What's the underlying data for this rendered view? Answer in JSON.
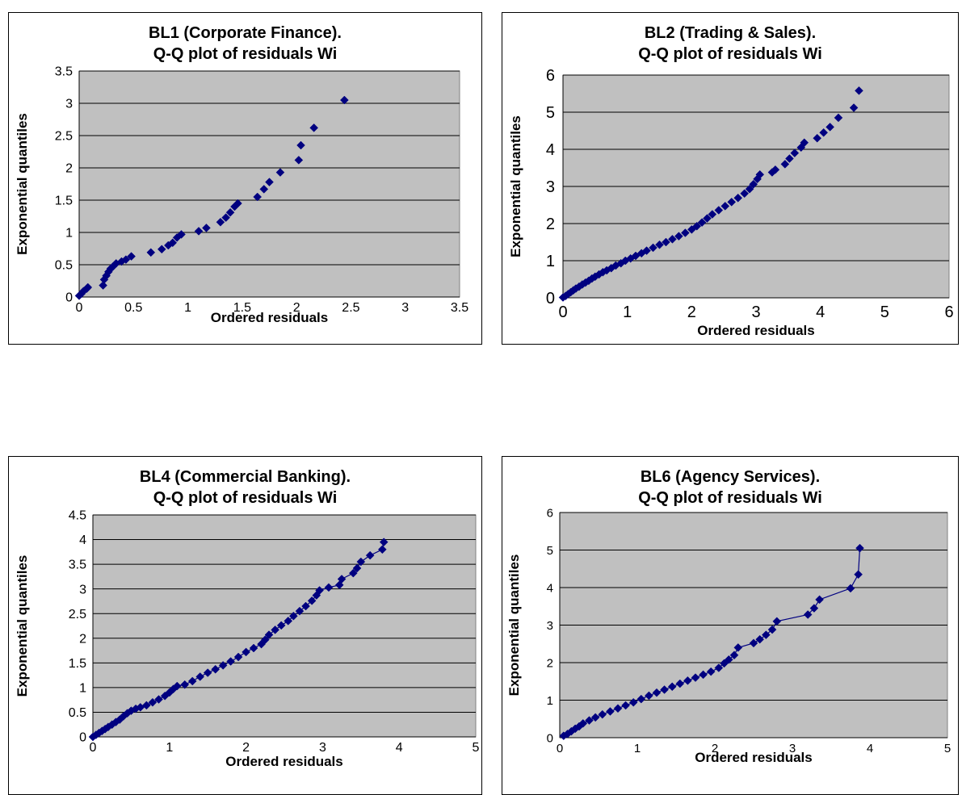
{
  "chart_data": [
    {
      "type": "scatter",
      "title_line1": "BL1 (Corporate Finance).",
      "title_line2": "Q-Q plot of residuals Wi",
      "xlabel": "Ordered residuals",
      "ylabel": "Exponential quantiles",
      "xlim": [
        0,
        3.5
      ],
      "ylim": [
        0,
        3.5
      ],
      "xticks": [
        "0",
        "0.5",
        "1",
        "1.5",
        "2",
        "2.5",
        "3",
        "3.5"
      ],
      "yticks": [
        "0",
        "0.5",
        "1",
        "1.5",
        "2",
        "2.5",
        "3",
        "3.5"
      ],
      "grid": true,
      "marker_color": "#000080",
      "connect_points": false,
      "points": [
        [
          0.0,
          0.02
        ],
        [
          0.02,
          0.05
        ],
        [
          0.04,
          0.09
        ],
        [
          0.07,
          0.13
        ],
        [
          0.08,
          0.15
        ],
        [
          0.22,
          0.18
        ],
        [
          0.23,
          0.27
        ],
        [
          0.25,
          0.33
        ],
        [
          0.27,
          0.39
        ],
        [
          0.29,
          0.44
        ],
        [
          0.31,
          0.47
        ],
        [
          0.34,
          0.52
        ],
        [
          0.39,
          0.55
        ],
        [
          0.43,
          0.58
        ],
        [
          0.48,
          0.63
        ],
        [
          0.66,
          0.69
        ],
        [
          0.76,
          0.74
        ],
        [
          0.82,
          0.8
        ],
        [
          0.86,
          0.84
        ],
        [
          0.9,
          0.92
        ],
        [
          0.94,
          0.97
        ],
        [
          1.1,
          1.02
        ],
        [
          1.17,
          1.07
        ],
        [
          1.3,
          1.16
        ],
        [
          1.35,
          1.23
        ],
        [
          1.39,
          1.31
        ],
        [
          1.43,
          1.4
        ],
        [
          1.46,
          1.45
        ],
        [
          1.64,
          1.55
        ],
        [
          1.7,
          1.67
        ],
        [
          1.75,
          1.78
        ],
        [
          1.85,
          1.93
        ],
        [
          2.02,
          2.12
        ],
        [
          2.04,
          2.35
        ],
        [
          2.16,
          2.62
        ],
        [
          2.44,
          3.05
        ]
      ]
    },
    {
      "type": "scatter",
      "title_line1": "BL2 (Trading & Sales).",
      "title_line2": "Q-Q plot of residuals Wi",
      "xlabel": "Ordered residuals",
      "ylabel": "Exponential quantiles",
      "xlim": [
        0,
        6
      ],
      "ylim": [
        0,
        6
      ],
      "xticks": [
        "0",
        "1",
        "2",
        "3",
        "4",
        "5",
        "6"
      ],
      "yticks": [
        "0",
        "1",
        "2",
        "3",
        "4",
        "5",
        "6"
      ],
      "grid": true,
      "marker_color": "#000080",
      "connect_points": false,
      "points": [
        [
          0.0,
          0.01
        ],
        [
          0.04,
          0.05
        ],
        [
          0.08,
          0.1
        ],
        [
          0.12,
          0.15
        ],
        [
          0.16,
          0.2
        ],
        [
          0.2,
          0.25
        ],
        [
          0.25,
          0.3
        ],
        [
          0.3,
          0.36
        ],
        [
          0.35,
          0.41
        ],
        [
          0.4,
          0.46
        ],
        [
          0.45,
          0.52
        ],
        [
          0.5,
          0.57
        ],
        [
          0.56,
          0.63
        ],
        [
          0.62,
          0.69
        ],
        [
          0.68,
          0.74
        ],
        [
          0.75,
          0.8
        ],
        [
          0.82,
          0.87
        ],
        [
          0.9,
          0.93
        ],
        [
          0.97,
          1.0
        ],
        [
          1.05,
          1.06
        ],
        [
          1.13,
          1.13
        ],
        [
          1.22,
          1.2
        ],
        [
          1.3,
          1.27
        ],
        [
          1.4,
          1.35
        ],
        [
          1.5,
          1.43
        ],
        [
          1.6,
          1.5
        ],
        [
          1.7,
          1.58
        ],
        [
          1.8,
          1.66
        ],
        [
          1.9,
          1.75
        ],
        [
          2.0,
          1.84
        ],
        [
          2.08,
          1.93
        ],
        [
          2.16,
          2.03
        ],
        [
          2.24,
          2.14
        ],
        [
          2.32,
          2.25
        ],
        [
          2.42,
          2.36
        ],
        [
          2.52,
          2.47
        ],
        [
          2.62,
          2.58
        ],
        [
          2.72,
          2.69
        ],
        [
          2.82,
          2.81
        ],
        [
          2.9,
          2.93
        ],
        [
          2.96,
          3.06
        ],
        [
          3.02,
          3.2
        ],
        [
          3.06,
          3.32
        ],
        [
          3.25,
          3.38
        ],
        [
          3.3,
          3.45
        ],
        [
          3.45,
          3.6
        ],
        [
          3.52,
          3.75
        ],
        [
          3.6,
          3.9
        ],
        [
          3.7,
          4.05
        ],
        [
          3.75,
          4.18
        ],
        [
          3.95,
          4.3
        ],
        [
          4.05,
          4.45
        ],
        [
          4.15,
          4.6
        ],
        [
          4.28,
          4.85
        ],
        [
          4.52,
          5.12
        ],
        [
          4.6,
          5.58
        ]
      ]
    },
    {
      "type": "scatter",
      "title_line1": "BL4 (Commercial Banking).",
      "title_line2": "Q-Q plot of residuals Wi",
      "xlabel": "Ordered residuals",
      "ylabel": "Exponential quantiles",
      "xlim": [
        0,
        5
      ],
      "ylim": [
        0,
        4.5
      ],
      "xticks": [
        "0",
        "1",
        "2",
        "3",
        "4",
        "5"
      ],
      "yticks": [
        "0",
        "0.5",
        "1",
        "1.5",
        "2",
        "2.5",
        "3",
        "3.5",
        "4",
        "4.5"
      ],
      "grid": true,
      "marker_color": "#000080",
      "connect_points": true,
      "points": [
        [
          0.0,
          0.0
        ],
        [
          0.04,
          0.04
        ],
        [
          0.08,
          0.08
        ],
        [
          0.12,
          0.12
        ],
        [
          0.16,
          0.16
        ],
        [
          0.2,
          0.2
        ],
        [
          0.25,
          0.25
        ],
        [
          0.3,
          0.3
        ],
        [
          0.35,
          0.35
        ],
        [
          0.4,
          0.42
        ],
        [
          0.45,
          0.48
        ],
        [
          0.5,
          0.53
        ],
        [
          0.56,
          0.57
        ],
        [
          0.62,
          0.6
        ],
        [
          0.7,
          0.64
        ],
        [
          0.78,
          0.7
        ],
        [
          0.86,
          0.76
        ],
        [
          0.94,
          0.83
        ],
        [
          1.0,
          0.9
        ],
        [
          1.05,
          0.97
        ],
        [
          1.1,
          1.03
        ],
        [
          1.2,
          1.06
        ],
        [
          1.3,
          1.13
        ],
        [
          1.4,
          1.22
        ],
        [
          1.5,
          1.3
        ],
        [
          1.6,
          1.37
        ],
        [
          1.7,
          1.45
        ],
        [
          1.8,
          1.53
        ],
        [
          1.9,
          1.62
        ],
        [
          2.0,
          1.72
        ],
        [
          2.1,
          1.8
        ],
        [
          2.2,
          1.88
        ],
        [
          2.25,
          1.97
        ],
        [
          2.3,
          2.07
        ],
        [
          2.38,
          2.17
        ],
        [
          2.46,
          2.26
        ],
        [
          2.55,
          2.35
        ],
        [
          2.62,
          2.45
        ],
        [
          2.7,
          2.55
        ],
        [
          2.78,
          2.65
        ],
        [
          2.86,
          2.76
        ],
        [
          2.92,
          2.87
        ],
        [
          2.96,
          2.97
        ],
        [
          3.08,
          3.03
        ],
        [
          3.22,
          3.08
        ],
        [
          3.25,
          3.2
        ],
        [
          3.4,
          3.32
        ],
        [
          3.45,
          3.42
        ],
        [
          3.5,
          3.55
        ],
        [
          3.62,
          3.68
        ],
        [
          3.78,
          3.8
        ],
        [
          3.8,
          3.95
        ]
      ]
    },
    {
      "type": "scatter",
      "title_line1": "BL6 (Agency Services).",
      "title_line2": "Q-Q plot of residuals Wi",
      "xlabel": "Ordered residuals",
      "ylabel": "Exponential quantiles",
      "xlim": [
        0,
        5
      ],
      "ylim": [
        0,
        6
      ],
      "xticks": [
        "0",
        "1",
        "2",
        "3",
        "4",
        "5"
      ],
      "yticks": [
        "0",
        "1",
        "2",
        "3",
        "4",
        "5",
        "6"
      ],
      "grid": true,
      "marker_color": "#000080",
      "connect_points": true,
      "points": [
        [
          0.05,
          0.05
        ],
        [
          0.1,
          0.1
        ],
        [
          0.15,
          0.17
        ],
        [
          0.2,
          0.24
        ],
        [
          0.25,
          0.3
        ],
        [
          0.3,
          0.38
        ],
        [
          0.38,
          0.46
        ],
        [
          0.46,
          0.54
        ],
        [
          0.55,
          0.62
        ],
        [
          0.65,
          0.7
        ],
        [
          0.75,
          0.78
        ],
        [
          0.85,
          0.86
        ],
        [
          0.95,
          0.94
        ],
        [
          1.05,
          1.03
        ],
        [
          1.15,
          1.12
        ],
        [
          1.25,
          1.2
        ],
        [
          1.35,
          1.28
        ],
        [
          1.45,
          1.36
        ],
        [
          1.55,
          1.44
        ],
        [
          1.65,
          1.52
        ],
        [
          1.75,
          1.6
        ],
        [
          1.85,
          1.68
        ],
        [
          1.95,
          1.76
        ],
        [
          2.05,
          1.86
        ],
        [
          2.12,
          1.98
        ],
        [
          2.18,
          2.08
        ],
        [
          2.25,
          2.2
        ],
        [
          2.3,
          2.4
        ],
        [
          2.5,
          2.52
        ],
        [
          2.58,
          2.62
        ],
        [
          2.66,
          2.74
        ],
        [
          2.74,
          2.88
        ],
        [
          2.8,
          3.1
        ],
        [
          3.2,
          3.28
        ],
        [
          3.28,
          3.45
        ],
        [
          3.35,
          3.68
        ],
        [
          3.75,
          3.98
        ],
        [
          3.85,
          4.35
        ],
        [
          3.87,
          5.05
        ]
      ]
    }
  ]
}
